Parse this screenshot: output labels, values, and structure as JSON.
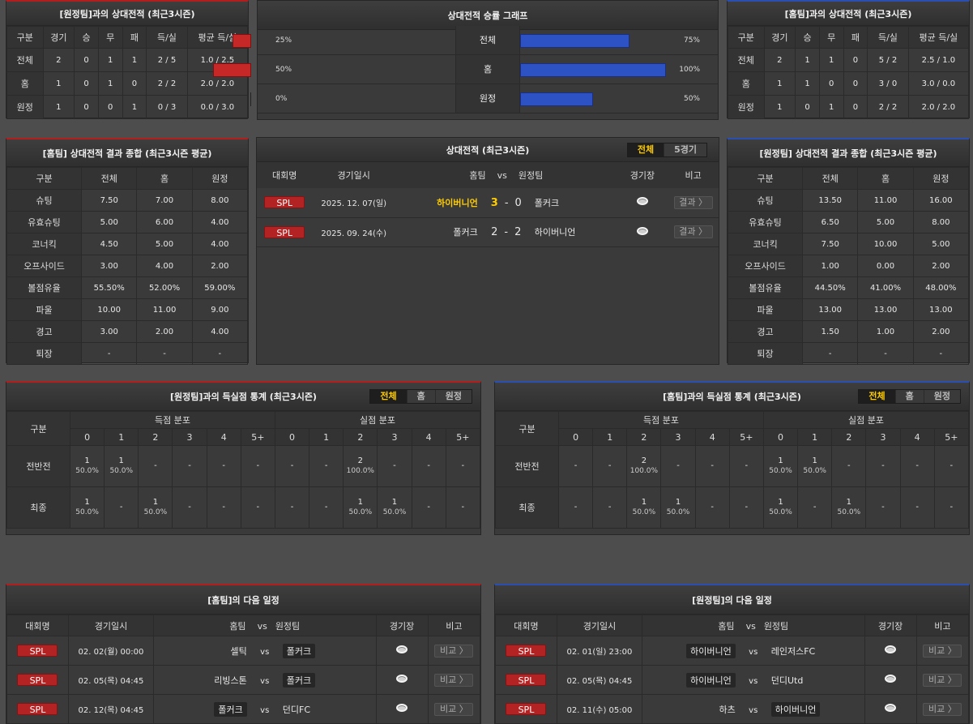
{
  "away_h2h": {
    "title": "[원정팀]과의 상대전적 (최근3시즌)",
    "headers": [
      "구분",
      "경기",
      "승",
      "무",
      "패",
      "득/실",
      "평균 득/실"
    ],
    "rows": [
      [
        "전체",
        "2",
        "0",
        "1",
        "1",
        "2 / 5",
        "1.0 / 2.5"
      ],
      [
        "홈",
        "1",
        "0",
        "1",
        "0",
        "2 / 2",
        "2.0 / 2.0"
      ],
      [
        "원정",
        "1",
        "0",
        "0",
        "1",
        "0 / 3",
        "0.0 / 3.0"
      ]
    ]
  },
  "home_h2h": {
    "title": "[홈팀]과의 상대전적 (최근3시즌)",
    "headers": [
      "구분",
      "경기",
      "승",
      "무",
      "패",
      "득/실",
      "평균 득/실"
    ],
    "rows": [
      [
        "전체",
        "2",
        "1",
        "1",
        "0",
        "5 / 2",
        "2.5 / 1.0"
      ],
      [
        "홈",
        "1",
        "1",
        "0",
        "0",
        "3 / 0",
        "3.0 / 0.0"
      ],
      [
        "원정",
        "1",
        "0",
        "1",
        "0",
        "2 / 2",
        "2.0 / 2.0"
      ]
    ]
  },
  "graph": {
    "title": "상대전적 승률 그래프",
    "rows": [
      {
        "label": "전체",
        "left": "25%",
        "right": "75%",
        "left_val": 25,
        "right_val": 75
      },
      {
        "label": "홈",
        "left": "50%",
        "right": "100%",
        "left_val": 50,
        "right_val": 100
      },
      {
        "label": "원정",
        "left": "0%",
        "right": "50%",
        "left_val": 0,
        "right_val": 50
      }
    ]
  },
  "home_summary": {
    "title": "[홈팀] 상대전적 결과 종합 (최근3시즌 평균)",
    "headers": [
      "구분",
      "전체",
      "홈",
      "원정"
    ],
    "rows": [
      [
        "슈팅",
        "7.50",
        "7.00",
        "8.00"
      ],
      [
        "유효슈팅",
        "5.00",
        "6.00",
        "4.00"
      ],
      [
        "코너킥",
        "4.50",
        "5.00",
        "4.00"
      ],
      [
        "오프사이드",
        "3.00",
        "4.00",
        "2.00"
      ],
      [
        "볼점유율",
        "55.50%",
        "52.00%",
        "59.00%"
      ],
      [
        "파울",
        "10.00",
        "11.00",
        "9.00"
      ],
      [
        "경고",
        "3.00",
        "2.00",
        "4.00"
      ],
      [
        "퇴장",
        "-",
        "-",
        "-"
      ]
    ]
  },
  "away_summary": {
    "title": "[원정팀] 상대전적 결과 종합 (최근3시즌 평균)",
    "headers": [
      "구분",
      "전체",
      "홈",
      "원정"
    ],
    "rows": [
      [
        "슈팅",
        "13.50",
        "11.00",
        "16.00"
      ],
      [
        "유효슈팅",
        "6.50",
        "5.00",
        "8.00"
      ],
      [
        "코너킥",
        "7.50",
        "10.00",
        "5.00"
      ],
      [
        "오프사이드",
        "1.00",
        "0.00",
        "2.00"
      ],
      [
        "볼점유율",
        "44.50%",
        "41.00%",
        "48.00%"
      ],
      [
        "파울",
        "13.00",
        "13.00",
        "13.00"
      ],
      [
        "경고",
        "1.50",
        "1.00",
        "2.00"
      ],
      [
        "퇴장",
        "-",
        "-",
        "-"
      ]
    ]
  },
  "h2h_list": {
    "title": "상대전적 (최근3시즌)",
    "tabs": [
      "전체",
      "5경기"
    ],
    "headers": {
      "league": "대회명",
      "date": "경기일시",
      "home": "홈팀",
      "vs": "vs",
      "away": "원정팀",
      "stadium": "경기장",
      "compare": "비고"
    },
    "matches": [
      {
        "league": "SPL",
        "date": "2025. 12. 07(일)",
        "home": "하이버니언",
        "score_h": "3",
        "dash": "-",
        "score_a": "0",
        "away": "폴커크",
        "compare": "결과 〉"
      },
      {
        "league": "SPL",
        "date": "2025. 09. 24(수)",
        "home": "폴커크",
        "score_h": "2",
        "dash": "-",
        "score_a": "2",
        "away": "하이버니언",
        "compare": "결과 〉"
      }
    ]
  },
  "away_goals": {
    "title": "[원정팀]과의 득실점 통계 (최근3시즌)",
    "tabs": [
      "전체",
      "홈",
      "원정"
    ],
    "gubun": "구분",
    "scored_label": "득점 분포",
    "conceded_label": "실점 분포",
    "cols": [
      "0",
      "1",
      "2",
      "3",
      "4",
      "5+",
      "0",
      "1",
      "2",
      "3",
      "4",
      "5+"
    ],
    "rows": [
      {
        "label": "전반전",
        "cells": [
          [
            "1",
            "50.0%"
          ],
          [
            "1",
            "50.0%"
          ],
          [
            "-",
            ""
          ],
          [
            "-",
            ""
          ],
          [
            "-",
            ""
          ],
          [
            "-",
            ""
          ],
          [
            "-",
            ""
          ],
          [
            "-",
            ""
          ],
          [
            "2",
            "100.0%"
          ],
          [
            "-",
            ""
          ],
          [
            "-",
            ""
          ],
          [
            "-",
            ""
          ]
        ]
      },
      {
        "label": "최종",
        "cells": [
          [
            "1",
            "50.0%"
          ],
          [
            "-",
            ""
          ],
          [
            "1",
            "50.0%"
          ],
          [
            "-",
            ""
          ],
          [
            "-",
            ""
          ],
          [
            "-",
            ""
          ],
          [
            "-",
            ""
          ],
          [
            "-",
            ""
          ],
          [
            "1",
            "50.0%"
          ],
          [
            "1",
            "50.0%"
          ],
          [
            "-",
            ""
          ],
          [
            "-",
            ""
          ]
        ]
      }
    ]
  },
  "home_goals": {
    "title": "[홈팀]과의 득실점 통계 (최근3시즌)",
    "tabs": [
      "전체",
      "홈",
      "원정"
    ],
    "gubun": "구분",
    "scored_label": "득점 분포",
    "conceded_label": "실점 분포",
    "cols": [
      "0",
      "1",
      "2",
      "3",
      "4",
      "5+",
      "0",
      "1",
      "2",
      "3",
      "4",
      "5+"
    ],
    "rows": [
      {
        "label": "전반전",
        "cells": [
          [
            "-",
            ""
          ],
          [
            "-",
            ""
          ],
          [
            "2",
            "100.0%"
          ],
          [
            "-",
            ""
          ],
          [
            "-",
            ""
          ],
          [
            "-",
            ""
          ],
          [
            "1",
            "50.0%"
          ],
          [
            "1",
            "50.0%"
          ],
          [
            "-",
            ""
          ],
          [
            "-",
            ""
          ],
          [
            "-",
            ""
          ],
          [
            "-",
            ""
          ]
        ]
      },
      {
        "label": "최종",
        "cells": [
          [
            "-",
            ""
          ],
          [
            "-",
            ""
          ],
          [
            "1",
            "50.0%"
          ],
          [
            "1",
            "50.0%"
          ],
          [
            "-",
            ""
          ],
          [
            "-",
            ""
          ],
          [
            "1",
            "50.0%"
          ],
          [
            "-",
            ""
          ],
          [
            "1",
            "50.0%"
          ],
          [
            "-",
            ""
          ],
          [
            "-",
            ""
          ],
          [
            "-",
            ""
          ]
        ]
      }
    ]
  },
  "home_next": {
    "title": "[홈팀]의 다음 일정",
    "headers": {
      "league": "대회명",
      "date": "경기일시",
      "home": "홈팀",
      "vs": "vs",
      "away": "원정팀",
      "stadium": "경기장",
      "compare": "비고"
    },
    "matches": [
      {
        "league": "SPL",
        "date": "02. 02(월) 00:00",
        "home": "셀틱",
        "vs": "vs",
        "away": "폴커크",
        "compare": "비교 〉",
        "hl": "away"
      },
      {
        "league": "SPL",
        "date": "02. 05(목) 04:45",
        "home": "리빙스톤",
        "vs": "vs",
        "away": "폴커크",
        "compare": "비교 〉",
        "hl": "away"
      },
      {
        "league": "SPL",
        "date": "02. 12(목) 04:45",
        "home": "폴커크",
        "vs": "vs",
        "away": "던디FC",
        "compare": "비교 〉",
        "hl": "home"
      }
    ]
  },
  "away_next": {
    "title": "[원정팀]의 다음 일정",
    "headers": {
      "league": "대회명",
      "date": "경기일시",
      "home": "홈팀",
      "vs": "vs",
      "away": "원정팀",
      "stadium": "경기장",
      "compare": "비고"
    },
    "matches": [
      {
        "league": "SPL",
        "date": "02. 01(일) 23:00",
        "home": "하이버니언",
        "vs": "vs",
        "away": "레인저스FC",
        "compare": "비교 〉",
        "hl": "home"
      },
      {
        "league": "SPL",
        "date": "02. 05(목) 04:45",
        "home": "하이버니언",
        "vs": "vs",
        "away": "던디Utd",
        "compare": "비교 〉",
        "hl": "home"
      },
      {
        "league": "SPL",
        "date": "02. 11(수) 05:00",
        "home": "하츠",
        "vs": "vs",
        "away": "하이버니언",
        "compare": "비교 〉",
        "hl": "away"
      }
    ]
  },
  "colors": {
    "red": "#b32323",
    "blue": "#2d52c4",
    "highlight": "#ffcc00",
    "bg": "#4d4d4d",
    "panel": "#3a3a3a"
  }
}
